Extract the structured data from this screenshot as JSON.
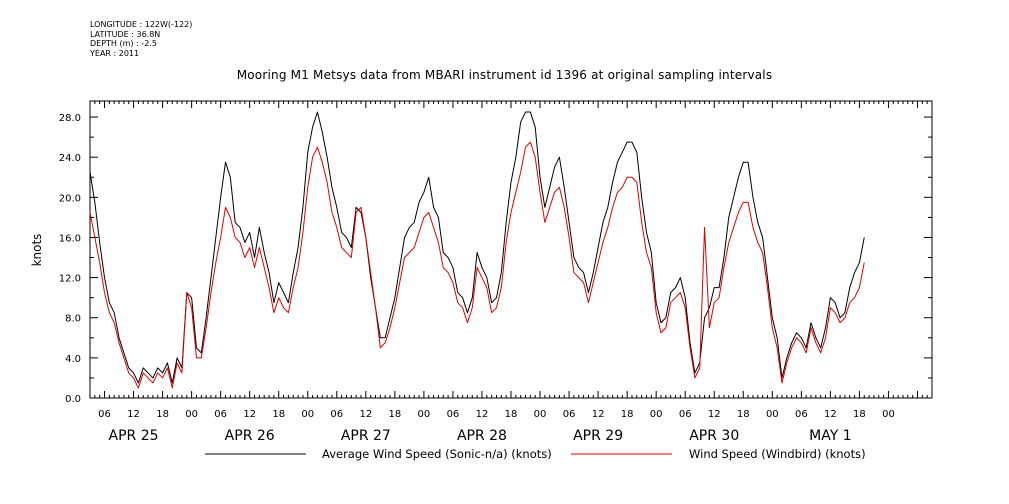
{
  "meta": {
    "longitude": "LONGITUDE : 122W(-122)",
    "latitude": "LATITUDE : 36.8N",
    "depth": "DEPTH (m) : -2.5",
    "year": "YEAR : 2011"
  },
  "colors": {
    "series1": "#000000",
    "series2": "#e00000"
  },
  "chart_data": {
    "type": "line",
    "title": "Mooring M1 Metsys data from MBARI instrument id 1396 at original sampling intervals",
    "ylabel": "knots",
    "xlabel": "",
    "ylim": [
      0,
      29.6
    ],
    "xlim_hours": [
      -21,
      153
    ],
    "yticks": [
      "0.0",
      "4.0",
      "8.0",
      "12.0",
      "16.0",
      "20.0",
      "24.0",
      "28.0"
    ],
    "xtick_labels": [
      "06",
      "12",
      "18",
      "00",
      "06",
      "12",
      "18",
      "00",
      "06",
      "12",
      "18",
      "00",
      "06",
      "12",
      "18",
      "00",
      "06",
      "12",
      "18",
      "00",
      "06",
      "12",
      "18",
      "00",
      "06",
      "12",
      "18",
      "00"
    ],
    "day_labels": [
      "APR 25",
      "APR 26",
      "APR 27",
      "APR 28",
      "APR 29",
      "APR 30",
      "MAY  1"
    ],
    "legend": [
      "Average Wind Speed (Sonic-n/a) (knots)",
      "Wind Speed (Windbird) (knots)"
    ],
    "legend_position": "bottom",
    "grid": false,
    "x_hours": [
      -21,
      -20,
      -19,
      -18,
      -17,
      -16,
      -15,
      -14,
      -13,
      -12,
      -11,
      -10,
      -9,
      -8,
      -7,
      -6,
      -5,
      -4,
      -3,
      -2,
      -1,
      0,
      1,
      2,
      3,
      4,
      5,
      6,
      7,
      8,
      9,
      10,
      11,
      12,
      13,
      14,
      15,
      16,
      17,
      18,
      19,
      20,
      21,
      22,
      23,
      24,
      25,
      26,
      27,
      28,
      29,
      30,
      31,
      32,
      33,
      34,
      35,
      36,
      37,
      38,
      39,
      40,
      41,
      42,
      43,
      44,
      45,
      46,
      47,
      48,
      49,
      50,
      51,
      52,
      53,
      54,
      55,
      56,
      57,
      58,
      59,
      60,
      61,
      62,
      63,
      64,
      65,
      66,
      67,
      68,
      69,
      70,
      71,
      72,
      73,
      74,
      75,
      76,
      77,
      78,
      79,
      80,
      81,
      82,
      83,
      84,
      85,
      86,
      87,
      88,
      89,
      90,
      91,
      92,
      93,
      94,
      95,
      96,
      97,
      98,
      99,
      100,
      101,
      102,
      103,
      104,
      105,
      106,
      107,
      108,
      109,
      110,
      111,
      112,
      113,
      114,
      115,
      116,
      117,
      118,
      119,
      120,
      121,
      122,
      123,
      124,
      125,
      126,
      127,
      128,
      129,
      130,
      131,
      132,
      133,
      134,
      135,
      136,
      137,
      138,
      139,
      140,
      141,
      142,
      143,
      144,
      145,
      146,
      147,
      148,
      149,
      150,
      151,
      152,
      153
    ],
    "series": [
      {
        "name": "Average Wind Speed (Sonic-n/a) (knots)",
        "values": [
          22.5,
          19.5,
          15.5,
          12.0,
          9.5,
          8.5,
          6.0,
          4.5,
          3.0,
          2.5,
          1.5,
          3.0,
          2.5,
          2.0,
          3.0,
          2.5,
          3.5,
          1.5,
          4.0,
          3.0,
          10.5,
          10.0,
          5.0,
          4.5,
          8.0,
          12.0,
          16.0,
          20.0,
          23.5,
          22.0,
          17.5,
          17.0,
          15.5,
          16.5,
          14.0,
          17.0,
          14.5,
          12.5,
          9.5,
          11.5,
          10.5,
          9.5,
          12.5,
          15.0,
          19.0,
          24.5,
          27.0,
          28.5,
          26.5,
          24.0,
          21.0,
          19.0,
          16.5,
          16.0,
          15.0,
          19.0,
          18.5,
          16.0,
          12.0,
          9.0,
          6.0,
          6.0,
          8.0,
          10.0,
          13.0,
          16.0,
          17.0,
          17.5,
          19.5,
          20.5,
          22.0,
          19.0,
          18.0,
          14.5,
          14.0,
          13.0,
          10.5,
          10.0,
          8.5,
          10.0,
          14.5,
          13.0,
          12.0,
          9.5,
          10.0,
          12.5,
          17.5,
          21.5,
          24.0,
          27.5,
          28.5,
          28.5,
          27.0,
          22.0,
          19.0,
          21.0,
          23.0,
          24.0,
          21.0,
          17.5,
          14.0,
          13.0,
          12.5,
          10.5,
          12.5,
          15.0,
          17.5,
          19.0,
          21.5,
          23.5,
          24.5,
          25.5,
          25.5,
          24.5,
          20.0,
          16.5,
          14.5,
          9.5,
          7.5,
          8.0,
          10.5,
          11.0,
          12.0,
          10.0,
          5.5,
          2.5,
          3.5,
          8.0,
          9.0,
          11.0,
          11.0,
          14.0,
          18.0,
          20.0,
          22.0,
          23.5,
          23.5,
          20.0,
          17.5,
          16.0,
          12.0,
          8.0,
          6.0,
          2.0,
          4.0,
          5.5,
          6.5,
          6.0,
          5.0,
          7.5,
          6.0,
          5.0,
          7.0,
          10.0,
          9.5,
          8.0,
          8.5,
          11.0,
          12.5,
          13.5,
          16.0
        ],
        "color": "#000000"
      },
      {
        "name": "Wind Speed (Windbird) (knots)",
        "values": [
          18.5,
          16.0,
          13.5,
          10.5,
          8.5,
          7.5,
          5.5,
          4.0,
          2.5,
          2.0,
          1.0,
          2.5,
          2.0,
          1.5,
          2.5,
          2.0,
          3.0,
          1.0,
          3.5,
          2.5,
          10.5,
          9.0,
          4.0,
          4.0,
          7.0,
          10.5,
          13.5,
          16.0,
          19.0,
          18.0,
          16.0,
          15.5,
          14.0,
          15.0,
          13.0,
          15.0,
          13.0,
          11.0,
          8.5,
          10.0,
          9.0,
          8.5,
          11.0,
          13.0,
          16.5,
          21.0,
          24.0,
          25.0,
          23.5,
          21.5,
          18.5,
          17.0,
          15.0,
          14.5,
          14.0,
          18.5,
          19.0,
          16.0,
          12.5,
          9.0,
          5.0,
          5.5,
          7.0,
          9.0,
          11.5,
          14.0,
          14.5,
          15.0,
          16.5,
          18.0,
          18.5,
          17.0,
          15.5,
          13.0,
          12.5,
          11.5,
          9.5,
          9.0,
          7.5,
          9.0,
          13.0,
          12.0,
          11.0,
          8.5,
          9.0,
          11.0,
          15.5,
          18.5,
          20.5,
          22.5,
          25.0,
          25.5,
          24.0,
          20.5,
          17.5,
          19.0,
          20.5,
          21.0,
          19.0,
          16.0,
          12.5,
          12.0,
          11.5,
          9.5,
          11.5,
          13.5,
          15.5,
          17.0,
          19.0,
          20.5,
          21.0,
          22.0,
          22.0,
          21.5,
          17.5,
          14.5,
          13.0,
          8.5,
          6.5,
          7.0,
          9.5,
          10.0,
          10.5,
          9.0,
          5.0,
          2.0,
          3.0,
          17.0,
          7.0,
          9.5,
          10.0,
          13.0,
          15.5,
          17.0,
          18.5,
          19.5,
          19.5,
          17.0,
          15.5,
          14.5,
          11.0,
          7.0,
          5.0,
          1.5,
          3.5,
          5.0,
          6.0,
          5.5,
          4.5,
          7.0,
          5.5,
          4.5,
          6.0,
          9.0,
          8.5,
          7.5,
          8.0,
          9.5,
          10.0,
          11.0,
          13.5
        ],
        "color": "#e00000"
      }
    ]
  }
}
